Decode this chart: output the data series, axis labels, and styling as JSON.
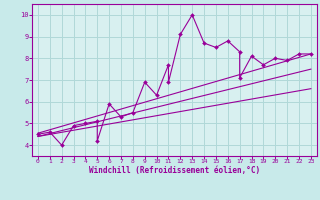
{
  "title": "",
  "xlabel": "Windchill (Refroidissement éolien,°C)",
  "background_color": "#c8eaea",
  "plot_bg_color": "#d8f0f0",
  "grid_color": "#b0d8d8",
  "line_color": "#990099",
  "xlim": [
    -0.5,
    23.5
  ],
  "ylim": [
    3.5,
    10.5
  ],
  "xticks": [
    0,
    1,
    2,
    3,
    4,
    5,
    6,
    7,
    8,
    9,
    10,
    11,
    12,
    13,
    14,
    15,
    16,
    17,
    18,
    19,
    20,
    21,
    22,
    23
  ],
  "yticks": [
    4,
    5,
    6,
    7,
    8,
    9,
    10
  ],
  "data_x": [
    0,
    1,
    2,
    3,
    4,
    5,
    5,
    6,
    7,
    8,
    9,
    10,
    11,
    11,
    12,
    13,
    14,
    15,
    16,
    17,
    17,
    18,
    19,
    20,
    21,
    22,
    23
  ],
  "data_y": [
    4.5,
    4.6,
    4.0,
    4.9,
    5.0,
    5.1,
    4.2,
    5.9,
    5.3,
    5.5,
    6.9,
    6.3,
    7.7,
    6.9,
    9.1,
    10.0,
    8.7,
    8.5,
    8.8,
    8.3,
    7.1,
    8.1,
    7.7,
    8.0,
    7.9,
    8.2,
    8.2
  ],
  "trend1_x": [
    0,
    23
  ],
  "trend1_y": [
    4.4,
    6.6
  ],
  "trend2_x": [
    0,
    23
  ],
  "trend2_y": [
    4.4,
    7.5
  ],
  "trend3_x": [
    0,
    23
  ],
  "trend3_y": [
    4.55,
    8.2
  ]
}
